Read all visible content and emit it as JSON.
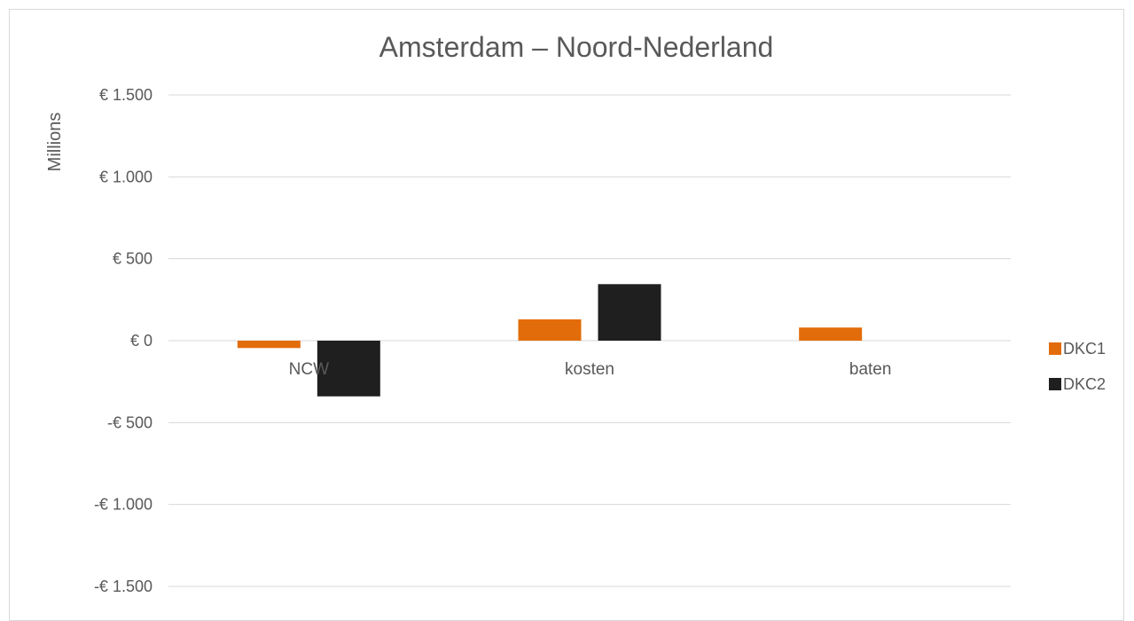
{
  "chart_data": {
    "type": "bar",
    "title": "Amsterdam – Noord-Nederland",
    "ylabel": "Millions",
    "xlabel": "",
    "categories": [
      "NCW",
      "kosten",
      "baten"
    ],
    "series": [
      {
        "name": "DKC1",
        "values": [
          -45,
          130,
          80
        ],
        "color": "#e36c0a"
      },
      {
        "name": "DKC2",
        "values": [
          -340,
          345,
          0
        ],
        "color": "#1f1f1f"
      }
    ],
    "ylim": [
      -1500,
      1500
    ],
    "yticks": [
      1500,
      1000,
      500,
      0,
      -500,
      -1000,
      -1500
    ],
    "ytick_labels": [
      "€ 1.500",
      "€ 1.000",
      "€ 500",
      "€ 0",
      "-€ 500",
      "-€ 1.000",
      "-€ 1.500"
    ],
    "grid": true,
    "legend_position": "right"
  }
}
